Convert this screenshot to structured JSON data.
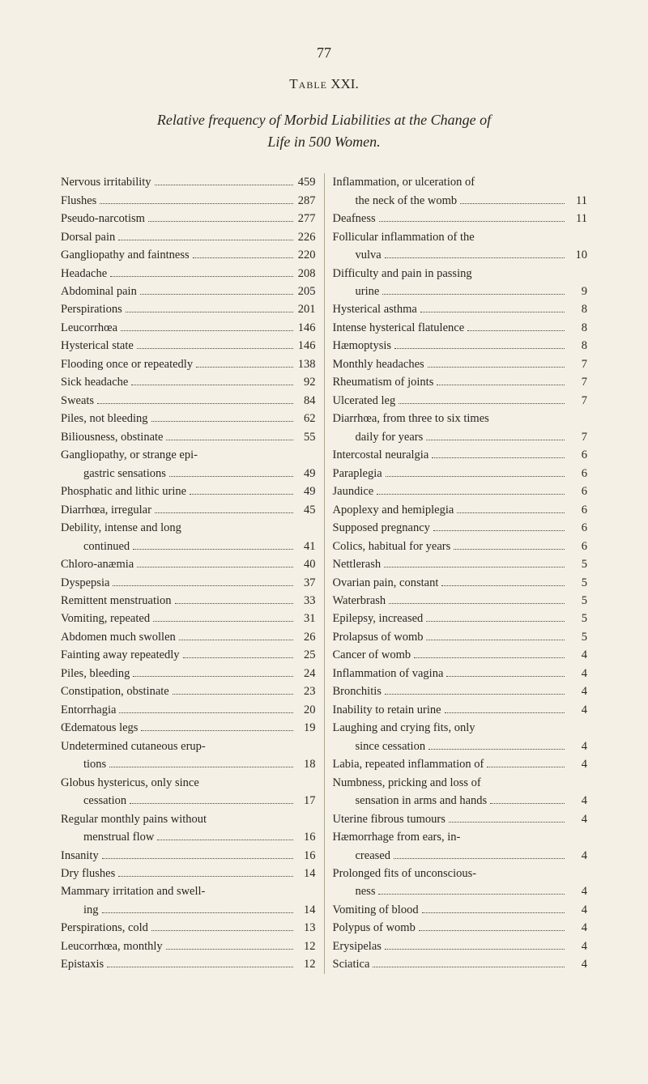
{
  "page_number": "77",
  "table_label_prefix": "Table",
  "table_number": "XXI.",
  "title_line1": "Relative frequency of Morbid Liabilities at the Change of",
  "title_line2": "Life in 500 Women.",
  "left_entries": [
    {
      "label": "Nervous irritability",
      "value": "459"
    },
    {
      "label": "Flushes",
      "value": "287"
    },
    {
      "label": "Pseudo-narcotism",
      "value": "277"
    },
    {
      "label": "Dorsal pain",
      "value": "226"
    },
    {
      "label": "Gangliopathy and faintness",
      "value": "220"
    },
    {
      "label": "Headache",
      "value": "208"
    },
    {
      "label": "Abdominal pain",
      "value": "205"
    },
    {
      "label": "Perspirations",
      "value": "201"
    },
    {
      "label": "Leucorrhœa",
      "value": "146"
    },
    {
      "label": "Hysterical state",
      "value": "146"
    },
    {
      "label": "Flooding once or repeatedly",
      "value": "138"
    },
    {
      "label": "Sick headache",
      "value": "92"
    },
    {
      "label": "Sweats",
      "value": "84"
    },
    {
      "label": "Piles, not bleeding",
      "value": "62"
    },
    {
      "label": "Biliousness, obstinate",
      "value": "55"
    },
    {
      "first": "Gangliopathy, or strange epi-",
      "cont": "gastric sensations",
      "value": "49"
    },
    {
      "label": "Phosphatic and lithic urine",
      "value": "49"
    },
    {
      "label": "Diarrhœa, irregular",
      "value": "45"
    },
    {
      "first": "Debility, intense and long",
      "cont": "continued",
      "value": "41"
    },
    {
      "label": "Chloro-anæmia",
      "value": "40"
    },
    {
      "label": "Dyspepsia",
      "value": "37"
    },
    {
      "label": "Remittent menstruation",
      "value": "33"
    },
    {
      "label": "Vomiting, repeated",
      "value": "31"
    },
    {
      "label": "Abdomen much swollen",
      "value": "26"
    },
    {
      "label": "Fainting away repeatedly",
      "value": "25"
    },
    {
      "label": "Piles, bleeding",
      "value": "24"
    },
    {
      "label": "Constipation, obstinate",
      "value": "23"
    },
    {
      "label": "Entorrhagia",
      "value": "20"
    },
    {
      "label": "Œdematous legs",
      "value": "19"
    },
    {
      "first": "Undetermined cutaneous erup-",
      "cont": "tions",
      "value": "18"
    },
    {
      "first": "Globus hystericus, only since",
      "cont": "cessation",
      "value": "17"
    },
    {
      "first": "Regular monthly pains without",
      "cont": "menstrual flow",
      "value": "16"
    },
    {
      "label": "Insanity",
      "value": "16"
    },
    {
      "label": "Dry flushes",
      "value": "14"
    },
    {
      "first": "Mammary irritation and swell-",
      "cont": "ing",
      "value": "14"
    },
    {
      "label": "Perspirations, cold",
      "value": "13"
    },
    {
      "label": "Leucorrhœa, monthly",
      "value": "12"
    },
    {
      "label": "Epistaxis",
      "value": "12"
    }
  ],
  "right_entries": [
    {
      "first": "Inflammation, or ulceration of",
      "cont": "the neck of the womb",
      "value": "11"
    },
    {
      "label": "Deafness",
      "value": "11"
    },
    {
      "first": "Follicular inflammation of the",
      "cont": "vulva",
      "value": "10"
    },
    {
      "first": "Difficulty and pain in passing",
      "cont": "urine",
      "value": "9"
    },
    {
      "label": "Hysterical asthma",
      "value": "8"
    },
    {
      "label": "Intense hysterical flatulence",
      "value": "8"
    },
    {
      "label": "Hæmoptysis",
      "value": "8"
    },
    {
      "label": "Monthly headaches",
      "value": "7"
    },
    {
      "label": "Rheumatism of joints",
      "value": "7"
    },
    {
      "label": "Ulcerated leg",
      "value": "7"
    },
    {
      "first": "Diarrhœa, from three to six times",
      "cont": "daily for years",
      "value": "7"
    },
    {
      "label": "Intercostal neuralgia",
      "value": "6"
    },
    {
      "label": "Paraplegia",
      "value": "6"
    },
    {
      "label": "Jaundice",
      "value": "6"
    },
    {
      "label": "Apoplexy and hemiplegia",
      "value": "6"
    },
    {
      "label": "Supposed pregnancy",
      "value": "6"
    },
    {
      "label": "Colics, habitual for years",
      "value": "6"
    },
    {
      "label": "Nettlerash",
      "value": "5"
    },
    {
      "label": "Ovarian pain, constant",
      "value": "5"
    },
    {
      "label": "Waterbrash",
      "value": "5"
    },
    {
      "label": "Epilepsy, increased",
      "value": "5"
    },
    {
      "label": "Prolapsus of womb",
      "value": "5"
    },
    {
      "label": "Cancer of womb",
      "value": "4"
    },
    {
      "label": "Inflammation of vagina",
      "value": "4"
    },
    {
      "label": "Bronchitis",
      "value": "4"
    },
    {
      "label": "Inability to retain urine",
      "value": "4"
    },
    {
      "first": "Laughing and crying fits, only",
      "cont": "since cessation",
      "value": "4"
    },
    {
      "label": "Labia, repeated inflammation of",
      "value": "4"
    },
    {
      "first": "Numbness, pricking and loss of",
      "cont": "sensation in arms and hands",
      "value": "4"
    },
    {
      "label": "Uterine fibrous tumours",
      "value": "4"
    },
    {
      "first": "Hæmorrhage from ears, in-",
      "cont": "creased",
      "value": "4"
    },
    {
      "first": "Prolonged fits of unconscious-",
      "cont": "ness",
      "value": "4"
    },
    {
      "label": "Vomiting of blood",
      "value": "4"
    },
    {
      "label": "Polypus of womb",
      "value": "4"
    },
    {
      "label": "Erysipelas",
      "value": "4"
    },
    {
      "label": "Sciatica",
      "value": "4"
    }
  ]
}
